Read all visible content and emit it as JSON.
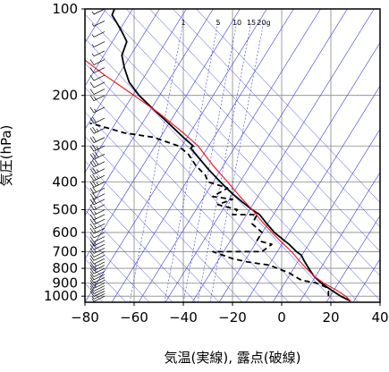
{
  "chart_data": {
    "type": "line",
    "title": "",
    "xlabel": "気温(実線), 露点(破線)",
    "ylabel": "気圧(hPa)",
    "y_scale": "log",
    "y_inverted": true,
    "xlim": [
      -80,
      40
    ],
    "ylim": [
      1050,
      100
    ],
    "x_ticks": [
      "−80",
      "−60",
      "−40",
      "−20",
      "0",
      "20",
      "40"
    ],
    "x_tick_values": [
      -80,
      -60,
      -40,
      -20,
      0,
      20,
      40
    ],
    "y_ticks": [
      "100",
      "200",
      "300",
      "400",
      "500",
      "600",
      "700",
      "800",
      "900",
      "1000"
    ],
    "y_tick_values": [
      100,
      200,
      300,
      400,
      500,
      600,
      700,
      800,
      900,
      1000
    ],
    "mixing_ratio_labels": [
      "1",
      "5",
      "10",
      "15",
      "20g"
    ],
    "grid": true,
    "colors": {
      "temperature": "#000000",
      "dewpoint": "#000000",
      "parcel": "#e8202a",
      "isotherms": "#3a3ad8",
      "grid": "#888888",
      "wind": "#000000"
    },
    "series": [
      {
        "id": "temperature",
        "style": "solid",
        "points": [
          [
            28,
            1040
          ],
          [
            24,
            1000
          ],
          [
            20,
            950
          ],
          [
            16,
            900
          ],
          [
            13,
            850
          ],
          [
            11,
            800
          ],
          [
            9,
            750
          ],
          [
            8,
            720
          ],
          [
            6,
            700
          ],
          [
            3,
            660
          ],
          [
            1,
            640
          ],
          [
            -3,
            600
          ],
          [
            -6,
            560
          ],
          [
            -9,
            520
          ],
          [
            -12,
            500
          ],
          [
            -16,
            470
          ],
          [
            -20,
            440
          ],
          [
            -25,
            400
          ],
          [
            -30,
            360
          ],
          [
            -35,
            320
          ],
          [
            -37,
            305
          ],
          [
            -36,
            300
          ],
          [
            -40,
            280
          ],
          [
            -46,
            250
          ],
          [
            -53,
            220
          ],
          [
            -58,
            200
          ],
          [
            -62,
            180
          ],
          [
            -64,
            160
          ],
          [
            -65,
            145
          ],
          [
            -63,
            130
          ],
          [
            -65,
            120
          ],
          [
            -67,
            112
          ],
          [
            -69,
            105
          ],
          [
            -68,
            100
          ]
        ]
      },
      {
        "id": "dewpoint",
        "style": "dashed",
        "points": [
          [
            19,
            1000
          ],
          [
            19,
            960
          ],
          [
            18,
            930
          ],
          [
            14,
            900
          ],
          [
            8,
            880
          ],
          [
            3,
            830
          ],
          [
            -5,
            780
          ],
          [
            -14,
            760
          ],
          [
            -20,
            740
          ],
          [
            -28,
            700
          ],
          [
            -8,
            700
          ],
          [
            -4,
            660
          ],
          [
            -10,
            640
          ],
          [
            -8,
            600
          ],
          [
            -12,
            560
          ],
          [
            -10,
            520
          ],
          [
            -20,
            520
          ],
          [
            -18,
            500
          ],
          [
            -26,
            480
          ],
          [
            -20,
            460
          ],
          [
            -28,
            450
          ],
          [
            -22,
            420
          ],
          [
            -30,
            400
          ],
          [
            -31,
            380
          ],
          [
            -35,
            350
          ],
          [
            -38,
            320
          ],
          [
            -42,
            300
          ],
          [
            -52,
            280
          ],
          [
            -64,
            270
          ],
          [
            -74,
            255
          ],
          [
            -78,
            250
          ]
        ]
      },
      {
        "id": "parcel",
        "style": "solid",
        "points": [
          [
            28,
            1040
          ],
          [
            26,
            1000
          ],
          [
            22,
            950
          ],
          [
            17,
            900
          ],
          [
            13,
            850
          ],
          [
            10,
            800
          ],
          [
            7,
            750
          ],
          [
            4,
            700
          ],
          [
            0,
            650
          ],
          [
            -4,
            600
          ],
          [
            -8,
            550
          ],
          [
            -12,
            500
          ],
          [
            -17,
            450
          ],
          [
            -22,
            400
          ],
          [
            -28,
            350
          ],
          [
            -34,
            300
          ],
          [
            -40,
            270
          ],
          [
            -50,
            230
          ],
          [
            -60,
            200
          ],
          [
            -72,
            170
          ],
          [
            -85,
            140
          ]
        ]
      }
    ],
    "wind_barbs": {
      "pressure_levels": [
        1000,
        980,
        960,
        940,
        920,
        900,
        880,
        860,
        840,
        820,
        800,
        780,
        760,
        740,
        720,
        700,
        680,
        660,
        640,
        620,
        600,
        580,
        560,
        540,
        520,
        500,
        480,
        460,
        440,
        420,
        400,
        380,
        360,
        340,
        320,
        300,
        280,
        260,
        240,
        220,
        200,
        190,
        180,
        170,
        160,
        150,
        140,
        130,
        120,
        110,
        100
      ],
      "speeds_kt": [
        5,
        5,
        10,
        10,
        10,
        15,
        15,
        10,
        10,
        10,
        15,
        15,
        15,
        10,
        10,
        10,
        15,
        20,
        15,
        10,
        10,
        15,
        15,
        20,
        15,
        15,
        15,
        20,
        20,
        20,
        25,
        25,
        25,
        30,
        30,
        25,
        20,
        25,
        20,
        15,
        15,
        10,
        10,
        10,
        10,
        10,
        5,
        5,
        5,
        5,
        5
      ]
    }
  }
}
